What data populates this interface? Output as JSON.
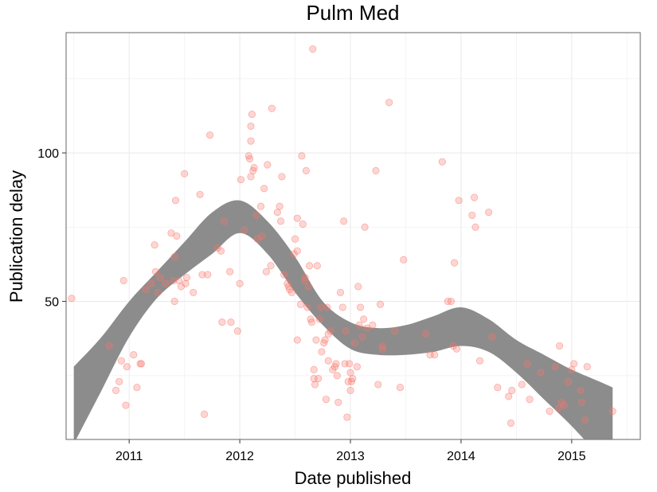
{
  "chart_data": {
    "type": "scatter",
    "title": "Pulm Med",
    "xlabel": "Date published",
    "ylabel": "Publication delay",
    "xlim": [
      2010.43,
      2015.62
    ],
    "ylim": [
      3.5,
      140.5
    ],
    "x_ticks": [
      {
        "value": 2011,
        "label": "2011"
      },
      {
        "value": 2012,
        "label": "2012"
      },
      {
        "value": 2013,
        "label": "2013"
      },
      {
        "value": 2014,
        "label": "2014"
      },
      {
        "value": 2015,
        "label": "2015"
      }
    ],
    "y_ticks": [
      {
        "value": 50,
        "label": "50"
      },
      {
        "value": 100,
        "label": "100"
      }
    ],
    "grid": true,
    "point_color": "#f8766d",
    "band_color": "#8c8c8c",
    "points": [
      [
        2010.48,
        51
      ],
      [
        2010.82,
        35
      ],
      [
        2010.88,
        20
      ],
      [
        2010.91,
        23
      ],
      [
        2010.93,
        30
      ],
      [
        2010.95,
        57
      ],
      [
        2010.97,
        15
      ],
      [
        2010.98,
        28
      ],
      [
        2011.04,
        32
      ],
      [
        2011.07,
        21
      ],
      [
        2011.1,
        29
      ],
      [
        2011.11,
        29
      ],
      [
        2011.15,
        54
      ],
      [
        2011.2,
        56
      ],
      [
        2011.23,
        69
      ],
      [
        2011.24,
        60
      ],
      [
        2011.26,
        53
      ],
      [
        2011.28,
        58
      ],
      [
        2011.33,
        56
      ],
      [
        2011.38,
        73
      ],
      [
        2011.4,
        57
      ],
      [
        2011.41,
        65
      ],
      [
        2011.41,
        50
      ],
      [
        2011.42,
        84
      ],
      [
        2011.43,
        72
      ],
      [
        2011.45,
        57
      ],
      [
        2011.47,
        55
      ],
      [
        2011.5,
        93
      ],
      [
        2011.51,
        56
      ],
      [
        2011.52,
        58
      ],
      [
        2011.58,
        53
      ],
      [
        2011.64,
        86
      ],
      [
        2011.66,
        59
      ],
      [
        2011.68,
        12
      ],
      [
        2011.71,
        59
      ],
      [
        2011.73,
        106
      ],
      [
        2011.8,
        68
      ],
      [
        2011.83,
        67
      ],
      [
        2011.84,
        43
      ],
      [
        2011.86,
        77
      ],
      [
        2011.91,
        60
      ],
      [
        2011.92,
        43
      ],
      [
        2011.98,
        40
      ],
      [
        2012.0,
        56
      ],
      [
        2012.01,
        91
      ],
      [
        2012.04,
        74
      ],
      [
        2012.08,
        99
      ],
      [
        2012.09,
        98
      ],
      [
        2012.1,
        92
      ],
      [
        2012.1,
        104
      ],
      [
        2012.1,
        109
      ],
      [
        2012.11,
        113
      ],
      [
        2012.12,
        94
      ],
      [
        2012.13,
        95
      ],
      [
        2012.15,
        79
      ],
      [
        2012.16,
        71
      ],
      [
        2012.19,
        82
      ],
      [
        2012.2,
        72
      ],
      [
        2012.22,
        88
      ],
      [
        2012.24,
        60
      ],
      [
        2012.25,
        96
      ],
      [
        2012.28,
        62
      ],
      [
        2012.29,
        115
      ],
      [
        2012.34,
        80
      ],
      [
        2012.36,
        82
      ],
      [
        2012.37,
        77
      ],
      [
        2012.38,
        92
      ],
      [
        2012.4,
        59
      ],
      [
        2012.43,
        56
      ],
      [
        2012.44,
        55
      ],
      [
        2012.45,
        54
      ],
      [
        2012.47,
        53
      ],
      [
        2012.49,
        66
      ],
      [
        2012.5,
        71
      ],
      [
        2012.52,
        67
      ],
      [
        2012.52,
        37
      ],
      [
        2012.52,
        78
      ],
      [
        2012.55,
        49
      ],
      [
        2012.56,
        99
      ],
      [
        2012.57,
        76
      ],
      [
        2012.59,
        58
      ],
      [
        2012.59,
        57
      ],
      [
        2012.6,
        94
      ],
      [
        2012.61,
        48
      ],
      [
        2012.62,
        55
      ],
      [
        2012.63,
        62
      ],
      [
        2012.64,
        44
      ],
      [
        2012.65,
        43
      ],
      [
        2012.66,
        135
      ],
      [
        2012.67,
        27
      ],
      [
        2012.67,
        24
      ],
      [
        2012.68,
        22
      ],
      [
        2012.69,
        37
      ],
      [
        2012.7,
        62
      ],
      [
        2012.71,
        24
      ],
      [
        2012.72,
        44
      ],
      [
        2012.73,
        48
      ],
      [
        2012.74,
        33
      ],
      [
        2012.76,
        36
      ],
      [
        2012.77,
        37
      ],
      [
        2012.78,
        17
      ],
      [
        2012.79,
        48
      ],
      [
        2012.8,
        39
      ],
      [
        2012.8,
        30
      ],
      [
        2012.82,
        40
      ],
      [
        2012.84,
        27
      ],
      [
        2012.86,
        28
      ],
      [
        2012.87,
        29
      ],
      [
        2012.88,
        25
      ],
      [
        2012.89,
        16
      ],
      [
        2012.91,
        53
      ],
      [
        2012.93,
        48
      ],
      [
        2012.94,
        77
      ],
      [
        2012.95,
        29
      ],
      [
        2012.96,
        40
      ],
      [
        2012.97,
        11
      ],
      [
        2012.98,
        23
      ],
      [
        2012.99,
        29
      ],
      [
        2013.0,
        20
      ],
      [
        2013.0,
        26
      ],
      [
        2013.01,
        23
      ],
      [
        2013.02,
        24
      ],
      [
        2013.04,
        36
      ],
      [
        2013.06,
        28
      ],
      [
        2013.07,
        55
      ],
      [
        2013.08,
        42
      ],
      [
        2013.09,
        48
      ],
      [
        2013.11,
        38
      ],
      [
        2013.12,
        44
      ],
      [
        2013.13,
        75
      ],
      [
        2013.15,
        41
      ],
      [
        2013.2,
        42
      ],
      [
        2013.23,
        94
      ],
      [
        2013.25,
        22
      ],
      [
        2013.27,
        49
      ],
      [
        2013.29,
        35
      ],
      [
        2013.29,
        34
      ],
      [
        2013.35,
        117
      ],
      [
        2013.4,
        40
      ],
      [
        2013.45,
        21
      ],
      [
        2013.48,
        64
      ],
      [
        2013.68,
        39
      ],
      [
        2013.72,
        32
      ],
      [
        2013.76,
        32
      ],
      [
        2013.83,
        97
      ],
      [
        2013.88,
        50
      ],
      [
        2013.91,
        50
      ],
      [
        2013.93,
        35
      ],
      [
        2013.94,
        63
      ],
      [
        2013.96,
        34
      ],
      [
        2013.98,
        84
      ],
      [
        2014.1,
        79
      ],
      [
        2014.12,
        85
      ],
      [
        2014.13,
        75
      ],
      [
        2014.17,
        30
      ],
      [
        2014.25,
        80
      ],
      [
        2014.28,
        38
      ],
      [
        2014.33,
        21
      ],
      [
        2014.43,
        18
      ],
      [
        2014.45,
        9
      ],
      [
        2014.46,
        20
      ],
      [
        2014.55,
        22
      ],
      [
        2014.6,
        29
      ],
      [
        2014.62,
        17
      ],
      [
        2014.72,
        26
      ],
      [
        2014.8,
        13
      ],
      [
        2014.85,
        28
      ],
      [
        2014.88,
        14
      ],
      [
        2014.89,
        35
      ],
      [
        2014.91,
        16
      ],
      [
        2014.93,
        15
      ],
      [
        2014.97,
        23
      ],
      [
        2015.0,
        27
      ],
      [
        2015.02,
        29
      ],
      [
        2015.08,
        20
      ],
      [
        2015.09,
        16
      ],
      [
        2015.12,
        10
      ],
      [
        2015.14,
        28
      ],
      [
        2015.37,
        13
      ]
    ],
    "smooth_band": [
      {
        "x": 2010.5,
        "lower": 2,
        "upper": 28
      },
      {
        "x": 2010.75,
        "lower": 20,
        "upper": 38
      },
      {
        "x": 2011.0,
        "lower": 38,
        "upper": 50
      },
      {
        "x": 2011.25,
        "lower": 51,
        "upper": 60
      },
      {
        "x": 2011.5,
        "lower": 59,
        "upper": 70
      },
      {
        "x": 2011.75,
        "lower": 66,
        "upper": 80
      },
      {
        "x": 2012.0,
        "lower": 73,
        "upper": 84
      },
      {
        "x": 2012.25,
        "lower": 66,
        "upper": 77
      },
      {
        "x": 2012.5,
        "lower": 53,
        "upper": 65
      },
      {
        "x": 2012.75,
        "lower": 42,
        "upper": 50
      },
      {
        "x": 2013.0,
        "lower": 34,
        "upper": 43
      },
      {
        "x": 2013.25,
        "lower": 32,
        "upper": 41
      },
      {
        "x": 2013.5,
        "lower": 32,
        "upper": 42
      },
      {
        "x": 2013.75,
        "lower": 33,
        "upper": 45
      },
      {
        "x": 2014.0,
        "lower": 35,
        "upper": 48
      },
      {
        "x": 2014.25,
        "lower": 33,
        "upper": 44
      },
      {
        "x": 2014.5,
        "lower": 26,
        "upper": 37
      },
      {
        "x": 2014.75,
        "lower": 17,
        "upper": 32
      },
      {
        "x": 2015.0,
        "lower": 8,
        "upper": 27
      },
      {
        "x": 2015.25,
        "lower": -2,
        "upper": 23
      },
      {
        "x": 2015.37,
        "lower": -6,
        "upper": 21
      }
    ]
  }
}
